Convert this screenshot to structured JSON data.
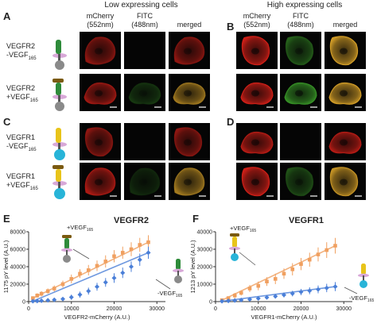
{
  "figure": {
    "section_titles": [
      "Low expressing cells",
      "High expressing cells"
    ],
    "channel_headers": {
      "mcherry": [
        "mCherry",
        "(552nm)"
      ],
      "fitc": [
        "FITC",
        "(488nm)"
      ],
      "merged": "merged"
    },
    "panels": {
      "A": "A",
      "B": "B",
      "C": "C",
      "D": "D",
      "E": "E",
      "F": "F"
    },
    "row_labels": [
      {
        "line1": "VEGFR2",
        "line2": "-VEGF",
        "sub": "165"
      },
      {
        "line1": "VEGFR2",
        "line2": "+VEGF",
        "sub": "165"
      },
      {
        "line1": "VEGFR1",
        "line2": "-VEGF",
        "sub": "165"
      },
      {
        "line1": "VEGFR1",
        "line2": "+VEGF",
        "sub": "165"
      }
    ],
    "colors": {
      "red_channel": "#d42018",
      "green_channel": "#3fa82c",
      "merged": "#d6a028",
      "vegfr2_receptor": "#2e8b3a",
      "vegfr1_receptor": "#e8c41a",
      "kinase_vegfr2": "#8a8a8a",
      "kinase_vegfr1": "#28b4d8",
      "ligand": "#7a5a10",
      "plus_series": "#f0a060",
      "minus_series": "#4a7fd8"
    }
  },
  "chart_data": [
    {
      "type": "scatter",
      "title": "VEGFR2",
      "xlabel": "VEGFR2-mCherry (A.U.)",
      "ylabel": "1175 pY level (A.U.)",
      "xlim": [
        0,
        32000
      ],
      "ylim": [
        0,
        80000
      ],
      "xticks": [
        "0",
        "10000",
        "20000",
        "30000"
      ],
      "yticks": [
        "0",
        "20000",
        "40000",
        "60000",
        "80000"
      ],
      "series": [
        {
          "name": "+VEGF165",
          "label": {
            "main": "+VEGF",
            "sub": "165"
          },
          "x": [
            1000,
            2000,
            3000,
            4500,
            6000,
            8000,
            10000,
            12000,
            14000,
            16000,
            18000,
            20000,
            22000,
            24000,
            26000,
            28000
          ],
          "y": [
            4000,
            7000,
            9000,
            12000,
            15000,
            20000,
            26000,
            32000,
            36000,
            41000,
            46000,
            52000,
            56000,
            60000,
            65000,
            68000
          ],
          "err": [
            2000,
            2500,
            3000,
            3000,
            3500,
            4000,
            5000,
            5000,
            6000,
            6000,
            7000,
            7000,
            7000,
            8000,
            8000,
            8000
          ]
        },
        {
          "name": "-VEGF165",
          "label": {
            "main": "-VEGF",
            "sub": "165"
          },
          "x": [
            1000,
            2000,
            3000,
            4500,
            6000,
            8000,
            10000,
            12000,
            14000,
            16000,
            18000,
            20000,
            22000,
            24000,
            26000,
            28000
          ],
          "y": [
            500,
            700,
            1000,
            1500,
            2000,
            3000,
            5000,
            8000,
            12000,
            17000,
            22000,
            27000,
            33000,
            40000,
            48000,
            56000
          ],
          "err": [
            500,
            600,
            800,
            1000,
            1500,
            2000,
            3000,
            3500,
            4000,
            4500,
            5000,
            5500,
            6000,
            6000,
            7000,
            7000
          ]
        }
      ]
    },
    {
      "type": "scatter",
      "title": "VEGFR1",
      "xlabel": "VEGFR1-mCherry (A.U.)",
      "ylabel": "1213 pY level (A.U.)",
      "xlim": [
        0,
        32000
      ],
      "ylim": [
        0,
        40000
      ],
      "xticks": [
        "0",
        "10000",
        "20000",
        "30000"
      ],
      "yticks": [
        "0",
        "10000",
        "20000",
        "30000",
        "40000"
      ],
      "series": [
        {
          "name": "+VEGF165",
          "label": {
            "main": "+VEGF",
            "sub": "165"
          },
          "x": [
            1500,
            3000,
            4500,
            6000,
            8000,
            10000,
            12000,
            14000,
            16000,
            18000,
            20000,
            22000,
            24000,
            26000,
            28000
          ],
          "y": [
            800,
            2000,
            3500,
            5000,
            7500,
            9000,
            11500,
            13000,
            16000,
            18500,
            21500,
            24000,
            27000,
            29500,
            32000
          ],
          "err": [
            600,
            1000,
            1500,
            1500,
            2000,
            2500,
            2500,
            3000,
            3000,
            3500,
            3500,
            4000,
            4000,
            4500,
            4500
          ]
        },
        {
          "name": "-VEGF165",
          "label": {
            "main": "-VEGF",
            "sub": "165"
          },
          "x": [
            1500,
            3000,
            4500,
            6000,
            8000,
            10000,
            12000,
            14000,
            16000,
            18000,
            20000,
            22000,
            24000,
            26000,
            28000
          ],
          "y": [
            200,
            400,
            600,
            900,
            1300,
            1800,
            2400,
            3000,
            3800,
            4600,
            5500,
            6200,
            7000,
            7800,
            8600
          ],
          "err": [
            300,
            400,
            500,
            600,
            700,
            900,
            1000,
            1200,
            1400,
            1600,
            1800,
            2000,
            2200,
            2400,
            2600
          ]
        }
      ]
    }
  ]
}
